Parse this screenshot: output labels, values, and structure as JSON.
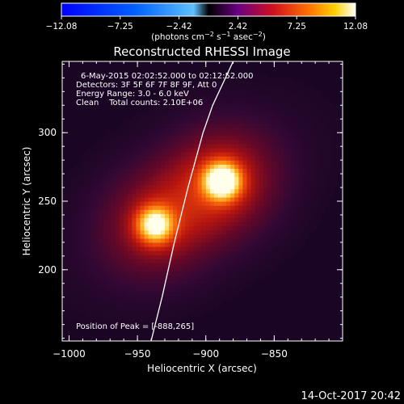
{
  "chart_data": {
    "type": "heatmap",
    "title": "Reconstructed RHESSI Image",
    "xlabel": "Heliocentric X (arcsec)",
    "ylabel": "Heliocentric Y (arcsec)",
    "xlim": [
      -1005,
      -800
    ],
    "ylim": [
      148,
      352
    ],
    "x_ticks": [
      -1000,
      -950,
      -900,
      -850
    ],
    "x_tick_labels": [
      "−1000",
      "−950",
      "−900",
      "−850"
    ],
    "y_ticks": [
      200,
      250,
      300
    ],
    "y_tick_labels": [
      "200",
      "250",
      "300"
    ],
    "colorbar": {
      "min": -12.08,
      "max": 12.08,
      "ticks": [
        -12.08,
        -7.25,
        -2.42,
        2.42,
        7.25,
        12.08
      ],
      "tick_labels": [
        "−12.08",
        "−7.25",
        "−2.42",
        "2.42",
        "7.25",
        "12.08"
      ],
      "units_text": "(photons cm",
      "units_sup1": "−2",
      "units_mid": " s",
      "units_sup2": "−1",
      "units_mid2": " asec",
      "units_sup3": "−2",
      "units_end": ")"
    },
    "sources": [
      {
        "x": -888,
        "y": 265,
        "peak": 12.08
      },
      {
        "x": -937,
        "y": 233,
        "peak": 9.5
      }
    ],
    "limb_curve": [
      [
        -940,
        148
      ],
      [
        -932,
        180
      ],
      [
        -923,
        220
      ],
      [
        -913,
        260
      ],
      [
        -902,
        300
      ],
      [
        -895,
        320
      ],
      [
        -880,
        352
      ]
    ],
    "annotations": [
      "6-May-2015 02:02:52.000 to 02:12:52.000",
      "Detectors: 3F 5F 6F 7F 8F 9F, Att 0",
      "Energy Range: 3.0 - 6.0 keV",
      "Clean    Total counts: 2.10E+06"
    ],
    "peak_label": "Position of Peak = [-888,265]"
  },
  "footer": {
    "timestamp": "14-Oct-2017 20:42"
  }
}
